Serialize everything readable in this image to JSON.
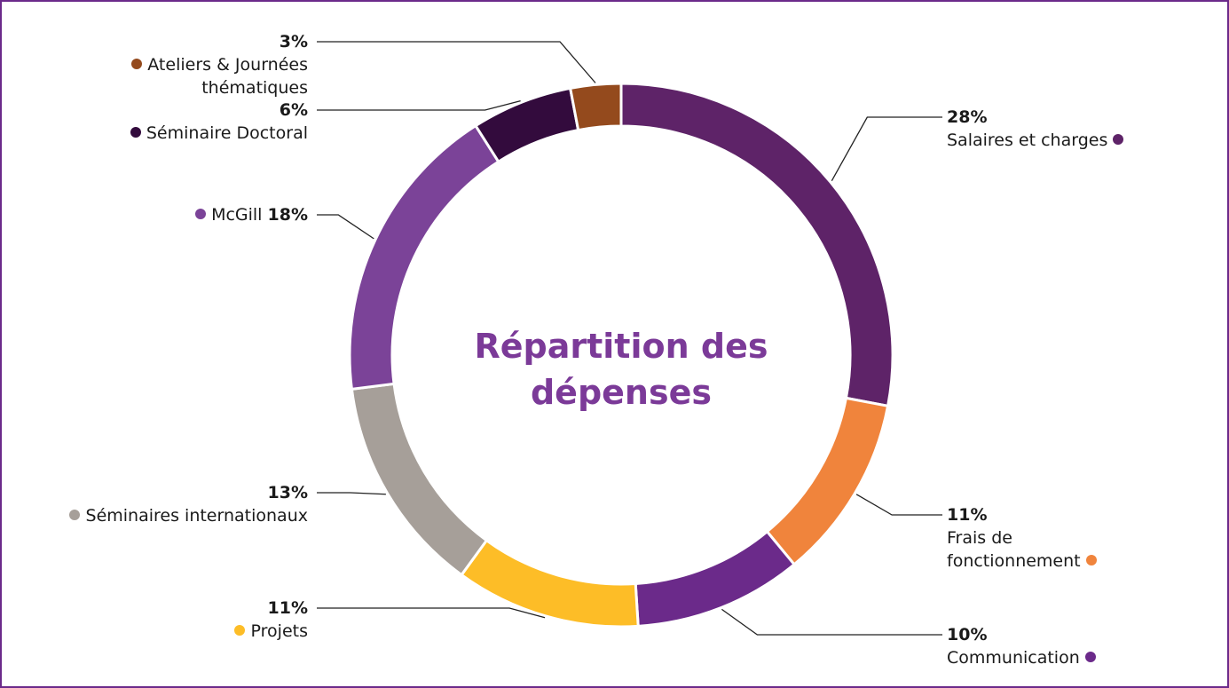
{
  "chart_data": {
    "type": "donut",
    "title": "Répartition des dépenses",
    "categories": [
      "Salaires et charges",
      "Frais de fonctionnement",
      "Communication",
      "Projets",
      "Séminaires internationaux",
      "McGill",
      "Séminaire Doctoral",
      "Ateliers & Journées thématiques"
    ],
    "values": [
      28,
      11,
      10,
      11,
      13,
      18,
      6,
      3
    ],
    "value_labels": [
      "28%",
      "11%",
      "10%",
      "11%",
      "13%",
      "18%",
      "6%",
      "3%"
    ],
    "colors": [
      "#5e2368",
      "#f0843c",
      "#6b2a8a",
      "#fdbd27",
      "#a69f99",
      "#7b4398",
      "#330b3d",
      "#944a1d"
    ]
  }
}
